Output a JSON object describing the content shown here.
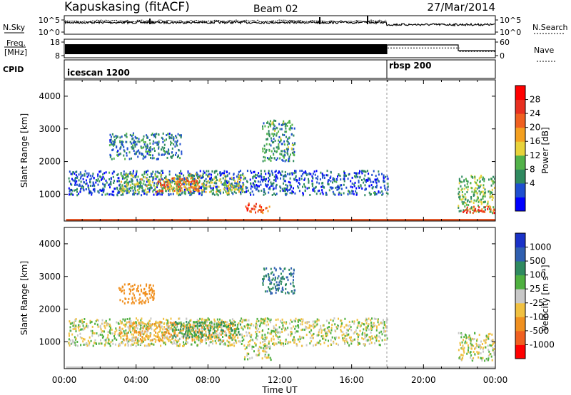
{
  "header": {
    "station": "Kapuskasing (fitACF)",
    "beam": "Beam 02",
    "date": "27/Mar/2014"
  },
  "summary": {
    "nsky_label": "N.Sky",
    "nsearch_label": "N.Search",
    "freq_label_1": "Freq.",
    "freq_label_2": "[MHz]",
    "nave_label": "Nave",
    "cpid_label": "CPID",
    "noise_ticks_left": [
      "10^5",
      "10^0"
    ],
    "noise_ticks_right": [
      "10^5",
      "10^0"
    ],
    "freq_ticks": [
      "18",
      "8"
    ],
    "nave_ticks": [
      "60",
      "0"
    ],
    "cpid_modes": [
      {
        "name": "icescan 1200",
        "start_hour": 0,
        "end_hour": 18.0
      },
      {
        "name": "rbsp 200",
        "start_hour": 18.0,
        "end_hour": 24.0
      }
    ],
    "nave_segments": [
      {
        "start_hour": 18.0,
        "end_hour": 22.0,
        "value": 34
      },
      {
        "start_hour": 22.0,
        "end_hour": 24.0,
        "value": 18
      }
    ]
  },
  "axes": {
    "xlabel": "Time UT",
    "ylabel": "Slant Range [km]",
    "xticks": [
      "00:00",
      "04:00",
      "08:00",
      "12:00",
      "16:00",
      "20:00",
      "00:00"
    ],
    "xlim_hours": [
      0,
      24
    ],
    "yticks": [
      "1000",
      "2000",
      "3000",
      "4000"
    ],
    "ylim_km": [
      180,
      4500
    ]
  },
  "colorbars": {
    "power": {
      "label": "Power [dB]",
      "ticks": [
        "28",
        "24",
        "20",
        "16",
        "12",
        "8",
        "4"
      ],
      "colors": [
        "#0000ff",
        "#1f4fd0",
        "#2f8a60",
        "#52b24a",
        "#e8d23a",
        "#f4a020",
        "#f06020",
        "#e83020",
        "#ff0000"
      ]
    },
    "velocity": {
      "label": "Velocity [m s⁻¹]",
      "ticks": [
        "1000",
        "500",
        "100",
        "25",
        "-25",
        "-100",
        "-500",
        "-1000"
      ],
      "colors": [
        "#1a32c8",
        "#2f5fb0",
        "#2f8a60",
        "#4fb040",
        "#c8c8c8",
        "#f0c040",
        "#f09020",
        "#f06020",
        "#ff0000"
      ]
    }
  },
  "chart_data": [
    {
      "type": "heatmap",
      "panel": "power",
      "xlabel": "Time UT",
      "ylabel": "Slant Range [km]",
      "x_unit": "hours UT",
      "y_unit": "km",
      "xlim": [
        0,
        24
      ],
      "ylim": [
        180,
        4500
      ],
      "value_unit": "dB",
      "regions": [
        {
          "t0": 0.2,
          "t1": 18.0,
          "r0": 1000,
          "r1": 1750,
          "value": 6
        },
        {
          "t0": 3.0,
          "t1": 10.0,
          "r0": 1050,
          "r1": 1650,
          "value": 14
        },
        {
          "t0": 5.0,
          "t1": 7.5,
          "r0": 1100,
          "r1": 1550,
          "value": 22
        },
        {
          "t0": 10.0,
          "t1": 11.4,
          "r0": 450,
          "r1": 750,
          "value": 24
        },
        {
          "t0": 11.0,
          "t1": 12.8,
          "r0": 2000,
          "r1": 3300,
          "value": 10
        },
        {
          "t0": 2.5,
          "t1": 6.5,
          "r0": 2100,
          "r1": 2900,
          "value": 8
        },
        {
          "t0": 21.9,
          "t1": 24.0,
          "r0": 450,
          "r1": 1600,
          "value": 12
        },
        {
          "t0": 21.9,
          "t1": 24.0,
          "r0": 450,
          "r1": 650,
          "value": 24
        }
      ]
    },
    {
      "type": "heatmap",
      "panel": "velocity",
      "xlabel": "Time UT",
      "ylabel": "Slant Range [km]",
      "x_unit": "hours UT",
      "y_unit": "km",
      "xlim": [
        0,
        24
      ],
      "ylim": [
        180,
        4500
      ],
      "value_unit": "m s-1",
      "regions": [
        {
          "t0": 0.2,
          "t1": 18.0,
          "r0": 900,
          "r1": 1750,
          "value": 0
        },
        {
          "t0": 3.0,
          "t1": 9.5,
          "r0": 1050,
          "r1": 1650,
          "value": -100
        },
        {
          "t0": 6.0,
          "t1": 9.8,
          "r0": 1150,
          "r1": 1650,
          "value": 100
        },
        {
          "t0": 3.0,
          "t1": 5.0,
          "r0": 2200,
          "r1": 2800,
          "value": -300
        },
        {
          "t0": 11.0,
          "t1": 12.8,
          "r0": 2500,
          "r1": 3300,
          "value": 500
        },
        {
          "t0": 10.0,
          "t1": 11.5,
          "r0": 450,
          "r1": 900,
          "value": 0
        },
        {
          "t0": 21.9,
          "t1": 24.0,
          "r0": 450,
          "r1": 1300,
          "value": 0
        }
      ]
    }
  ]
}
